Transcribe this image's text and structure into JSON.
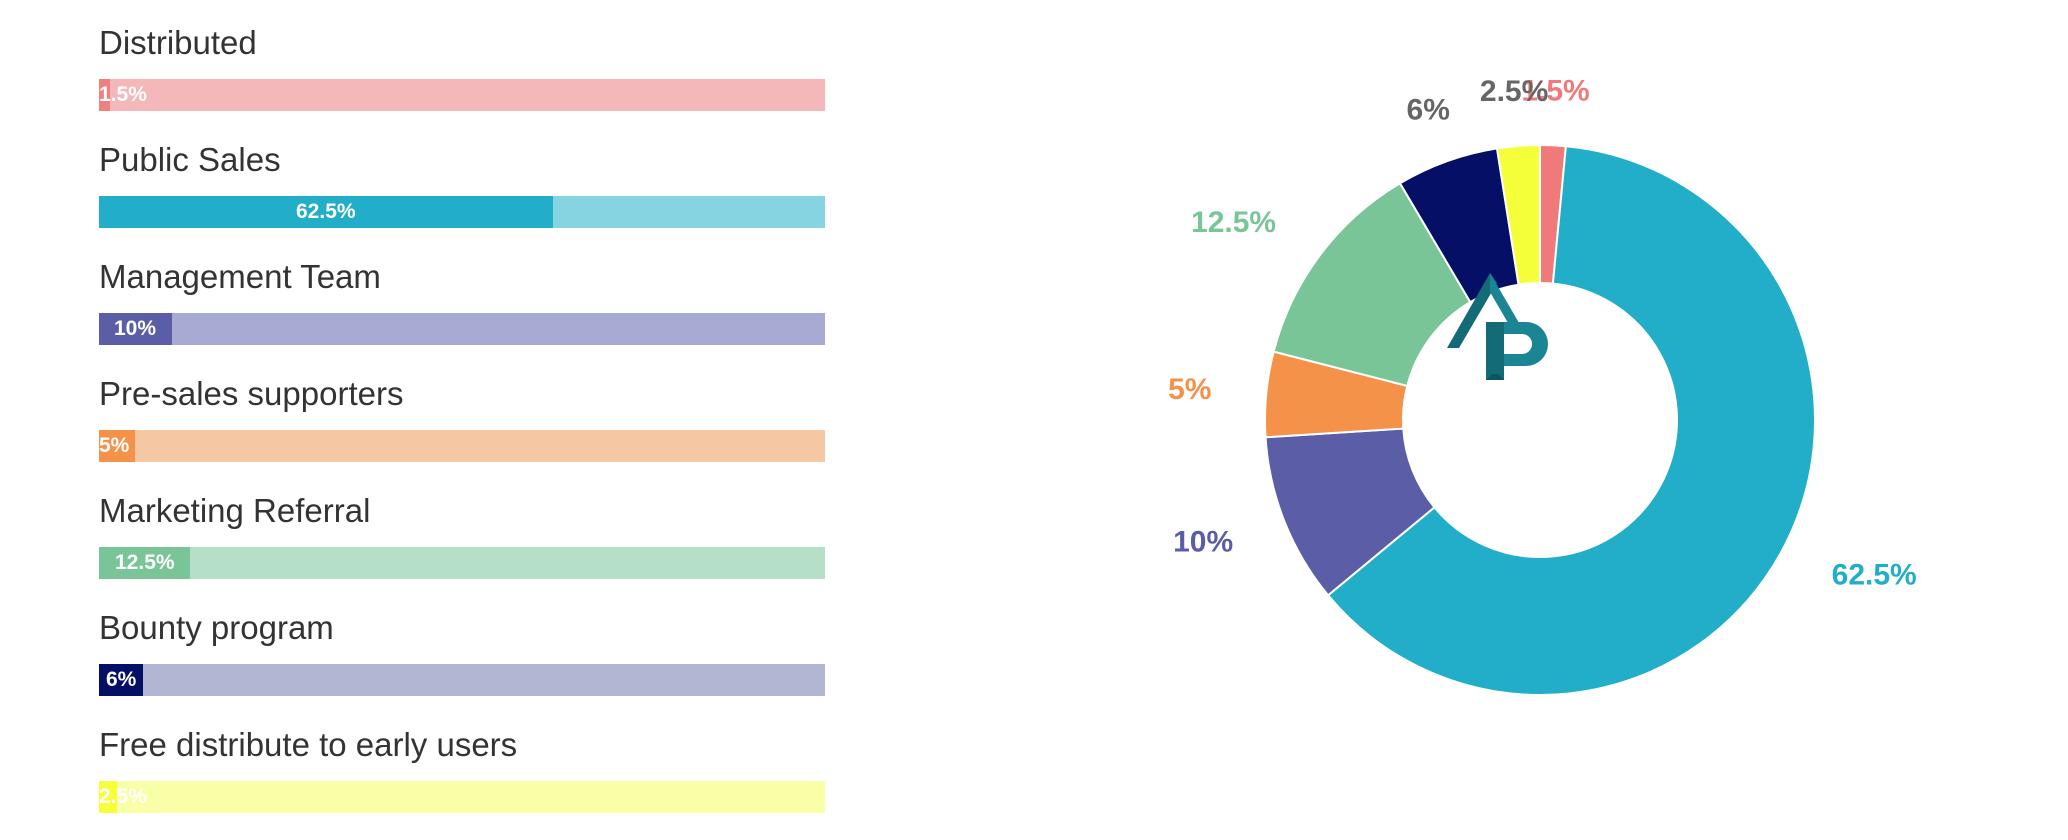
{
  "chart_data": [
    {
      "type": "bar",
      "orientation": "horizontal",
      "max": 100,
      "series": [
        {
          "name": "Distributed",
          "value": 1.5,
          "label": "1.5%",
          "color": "#f08080",
          "track_color": "#f4b8ba"
        },
        {
          "name": "Public Sales",
          "value": 62.5,
          "label": "62.5%",
          "color": "#22adc9",
          "track_color": "#86d3e1"
        },
        {
          "name": "Management Team",
          "value": 10,
          "label": "10%",
          "color": "#5b5ea6",
          "track_color": "#a8aad3"
        },
        {
          "name": "Pre-sales supporters",
          "value": 5,
          "label": "5%",
          "color": "#f5924a",
          "track_color": "#f6c7a3"
        },
        {
          "name": "Marketing Referral",
          "value": 12.5,
          "label": "12.5%",
          "color": "#7ac598",
          "track_color": "#b6dfc7"
        },
        {
          "name": "Bounty program",
          "value": 6,
          "label": "6%",
          "color": "#050f66",
          "track_color": "#b1b6d3"
        },
        {
          "name": "Free distribute to early users",
          "value": 2.5,
          "label": "2.5%",
          "color": "#f7ff3a",
          "track_color": "#f8ffa6"
        }
      ]
    },
    {
      "type": "pie",
      "style": "donut",
      "start": "top",
      "direction": "clockwise",
      "center_logo": "AP",
      "slices": [
        {
          "value": 1.5,
          "label": "1.5%",
          "color": "#f07a7a"
        },
        {
          "value": 62.5,
          "label": "62.5%",
          "color": "#22adc9"
        },
        {
          "value": 10,
          "label": "10%",
          "color": "#5b5ea6"
        },
        {
          "value": 5,
          "label": "5%",
          "color": "#f5924a"
        },
        {
          "value": 12.5,
          "label": "12.5%",
          "color": "#7ac598"
        },
        {
          "value": 6,
          "label": "6%",
          "color": "#050f66",
          "label_color": "#666666"
        },
        {
          "value": 2.5,
          "label": "2.5%",
          "color": "#f4ff3a",
          "label_color": "#666666"
        }
      ]
    }
  ]
}
